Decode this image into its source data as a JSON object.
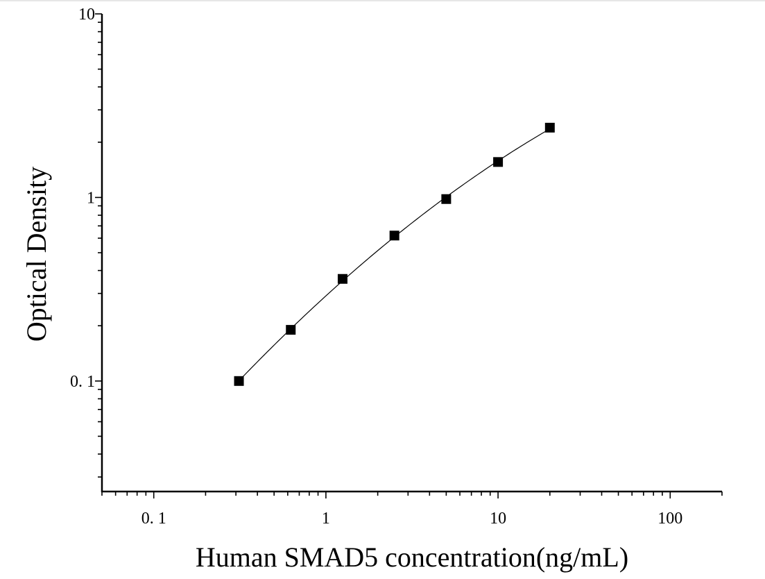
{
  "chart_data": {
    "type": "scatter",
    "title": "",
    "xlabel": "Human SMAD5 concentration(ng/mL)",
    "ylabel": "Optical Density",
    "x_scale": "log",
    "y_scale": "log",
    "xlim": [
      0.05,
      200
    ],
    "ylim": [
      0.025,
      10
    ],
    "x_ticks": [
      {
        "value": 0.1,
        "label": "0. 1"
      },
      {
        "value": 1,
        "label": "1"
      },
      {
        "value": 10,
        "label": "10"
      },
      {
        "value": 100,
        "label": "100"
      }
    ],
    "y_ticks": [
      {
        "value": 0.1,
        "label": "0. 1"
      },
      {
        "value": 1,
        "label": "1"
      },
      {
        "value": 10,
        "label": "10"
      }
    ],
    "grid": false,
    "legend": "none",
    "series": [
      {
        "name": "",
        "x": [
          0.3125,
          0.625,
          1.25,
          2.5,
          5,
          10,
          20
        ],
        "y": [
          0.1,
          0.19,
          0.36,
          0.62,
          0.98,
          1.56,
          2.4
        ],
        "marker": "square",
        "fit_line": true,
        "color": "#000000"
      }
    ]
  }
}
